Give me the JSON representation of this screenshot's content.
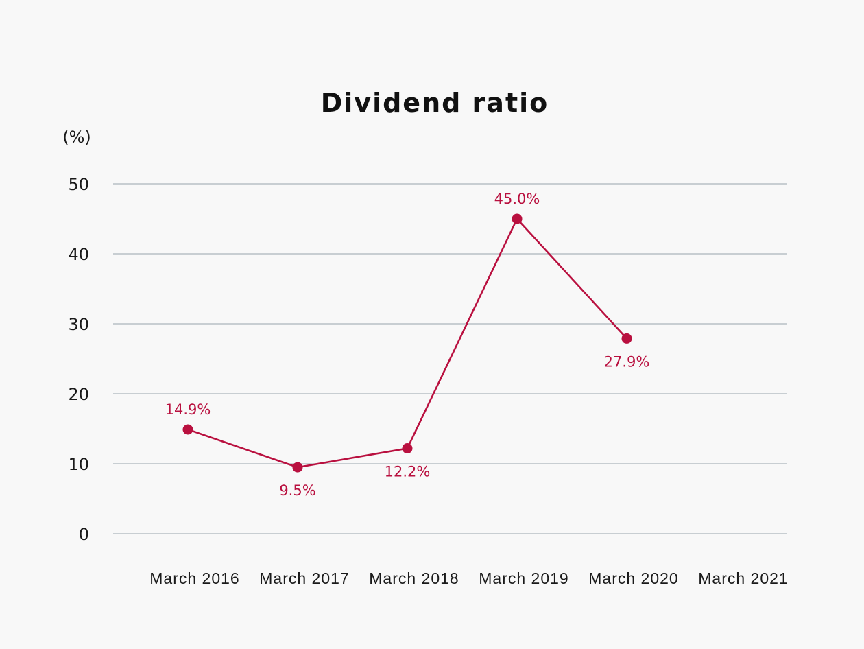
{
  "chart_data": {
    "type": "line",
    "title": "Dividend ratio",
    "unit_label": "(%)",
    "xlabel": "",
    "ylabel": "",
    "categories": [
      "March 2016",
      "March 2017",
      "March 2018",
      "March 2019",
      "March 2020",
      "March 2021"
    ],
    "y_ticks": [
      "0",
      "10",
      "20",
      "30",
      "40",
      "50"
    ],
    "ylim": [
      0,
      50
    ],
    "grid": true,
    "series": [
      {
        "values": [
          14.9,
          9.5,
          12.2,
          45.0,
          27.9,
          null
        ],
        "labels": [
          "14.9%",
          "9.5%",
          "12.2%",
          "45.0%",
          "27.9%",
          ""
        ],
        "color": "#b9103f"
      }
    ]
  }
}
